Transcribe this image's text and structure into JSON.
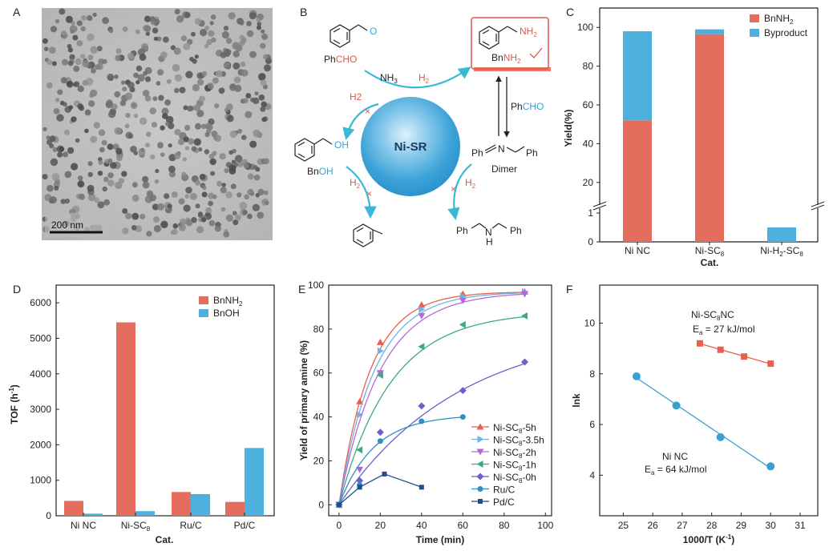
{
  "panels": {
    "a": {
      "label": "A",
      "scale_bar": "200 nm"
    },
    "b": {
      "label": "B",
      "center": "Ni-SR",
      "benzaldehyde": "PhCHO",
      "benzaldehyde_ph": "Ph",
      "benzaldehyde_cho": "CHO",
      "aldehyde_o": "O",
      "nh3": "NH3",
      "nh3_main": "NH",
      "nh3_sub": "3",
      "h2_main": "H",
      "h2_sub": "2",
      "h2_alt": "H2",
      "benzylamine": "BnNH2",
      "product_nh": "NH",
      "product_sub": "2",
      "product_bn": "Bn",
      "benzylalcohol": "BnOH",
      "alcohol_bn": "Bn",
      "alcohol_oh": "OH",
      "oh_label": "OH",
      "dimer": "Dimer",
      "dimer_ph1": "Ph",
      "dimer_n": "N",
      "dimer_ph2": "Ph",
      "reagent_ph": "Ph",
      "reagent_cho": "CHO",
      "secamine_ph1": "Ph",
      "secamine_n": "N",
      "secamine_h": "H",
      "secamine_ph2": "Ph"
    },
    "c": {
      "label": "C"
    },
    "d": {
      "label": "D"
    },
    "e": {
      "label": "E"
    },
    "f": {
      "label": "F"
    }
  },
  "chart_data": [
    {
      "id": "C",
      "type": "bar",
      "stacked": true,
      "categories": [
        "Ni NC",
        "Ni-SC8",
        "Ni-H2-SC8"
      ],
      "category_labels": [
        {
          "main": "Ni  NC",
          "sub": "",
          "tail": ""
        },
        {
          "main": "Ni-SC",
          "sub": "8",
          "tail": ""
        },
        {
          "main": "Ni-H",
          "sub": "2",
          "tail": "-SC",
          "sub2": "8"
        }
      ],
      "series": [
        {
          "name": "BnNH2",
          "legend_main": "BnNH",
          "legend_sub": "2",
          "color": "#e56d5e",
          "values": [
            52,
            96.5,
            0
          ]
        },
        {
          "name": "Byproduct",
          "legend_main": "Byproduct",
          "legend_sub": "",
          "color": "#4eb1dd",
          "values": [
            46,
            2.5,
            0.5
          ]
        }
      ],
      "xlabel": "Cat.",
      "ylabel": "Yield(%)",
      "ylim_lower": [
        0,
        1
      ],
      "ylim_upper": [
        10,
        110
      ],
      "yticks_lower": [
        0,
        1
      ],
      "yticks_upper": [
        20,
        40,
        60,
        80,
        100
      ]
    },
    {
      "id": "D",
      "type": "bar",
      "categories": [
        "Ni NC",
        "Ni-SC8",
        "Ru/C",
        "Pd/C"
      ],
      "category_labels": [
        {
          "main": "Ni NC",
          "sub": ""
        },
        {
          "main": "Ni-SC",
          "sub": "8"
        },
        {
          "main": "Ru/C",
          "sub": ""
        },
        {
          "main": "Pd/C",
          "sub": ""
        }
      ],
      "series": [
        {
          "name": "BnNH2",
          "legend_main": "BnNH",
          "legend_sub": "2",
          "color": "#e56d5e",
          "values": [
            420,
            5450,
            670,
            390
          ]
        },
        {
          "name": "BnOH",
          "legend_main": "BnOH",
          "legend_sub": "",
          "color": "#4eb1dd",
          "values": [
            60,
            130,
            610,
            1910
          ]
        }
      ],
      "xlabel": "Cat.",
      "ylabel_main": "TOF (h",
      "ylabel_sup": "-1",
      "ylabel_tail": ")",
      "ylim": [
        0,
        6500
      ],
      "yticks": [
        0,
        1000,
        2000,
        3000,
        4000,
        5000,
        6000
      ]
    },
    {
      "id": "E",
      "type": "line",
      "xlabel": "Time (min)",
      "ylabel": "Yield of primary amine (%)",
      "xlim": [
        -5,
        103
      ],
      "ylim": [
        -5,
        100
      ],
      "xticks": [
        0,
        20,
        40,
        60,
        80,
        100
      ],
      "yticks": [
        0,
        20,
        40,
        60,
        80,
        100
      ],
      "series": [
        {
          "name": "Ni-SC8-5h",
          "l_main": "Ni-SC",
          "l_sub": "8",
          "l_tail": "-5h",
          "color": "#e8604f",
          "marker": "tri-up",
          "x": [
            0,
            10,
            20,
            40,
            60,
            90
          ],
          "y": [
            0,
            47,
            74,
            91,
            96,
            97
          ],
          "fit_a": 97,
          "fit_k": 0.066
        },
        {
          "name": "Ni-SC8-3.5h",
          "l_main": "Ni-SC",
          "l_sub": "8",
          "l_tail": "-3.5h",
          "color": "#6fb3e0",
          "marker": "tri-right",
          "x": [
            0,
            10,
            20,
            40,
            60,
            90
          ],
          "y": [
            0,
            41,
            70,
            89,
            95,
            97
          ],
          "fit_a": 97,
          "fit_k": 0.058
        },
        {
          "name": "Ni-SC8-2h",
          "l_main": "Ni-SC",
          "l_sub": "8",
          "l_tail": "-2h",
          "color": "#b06ad8",
          "marker": "tri-down",
          "x": [
            0,
            10,
            20,
            40,
            60,
            90
          ],
          "y": [
            0,
            16,
            60,
            86,
            93,
            96
          ],
          "fit_a": 97,
          "fit_k": 0.05
        },
        {
          "name": "Ni-SC8-1h",
          "l_main": "Ni-SC",
          "l_sub": "8",
          "l_tail": "-1h",
          "color": "#3fa786",
          "marker": "tri-left",
          "x": [
            0,
            10,
            20,
            40,
            60,
            90
          ],
          "y": [
            0,
            25,
            59,
            72,
            82,
            86
          ],
          "fit_a": 88,
          "fit_k": 0.04
        },
        {
          "name": "Ni-SC8-0h",
          "l_main": "Ni-SC",
          "l_sub": "8",
          "l_tail": "-0h",
          "color": "#6b62c8",
          "marker": "diamond",
          "x": [
            0,
            10,
            20,
            40,
            60,
            90
          ],
          "y": [
            0,
            11,
            33,
            45,
            52,
            65
          ],
          "fit_a": 82,
          "fit_k": 0.017
        },
        {
          "name": "Ru/C",
          "l_main": "Ru/C",
          "l_sub": "",
          "l_tail": "",
          "color": "#2e8fc4",
          "marker": "circle",
          "x": [
            0,
            10,
            20,
            40,
            60
          ],
          "y": [
            0,
            9,
            29,
            38,
            40
          ],
          "fit_a": 41,
          "fit_k": 0.06
        },
        {
          "name": "Pd/C",
          "l_main": "Pd/C",
          "l_sub": "",
          "l_tail": "",
          "color": "#1f4e8c",
          "marker": "square",
          "x": [
            0,
            10,
            22,
            40
          ],
          "y": [
            0,
            8,
            14,
            8
          ],
          "fit_a": null,
          "fit_k": null
        }
      ]
    },
    {
      "id": "F",
      "type": "scatter",
      "xlabel_main": "1000/T (K",
      "xlabel_sup": "-1",
      "xlabel_tail": ")",
      "ylabel": "lnk",
      "xlim": [
        24.2,
        31.6
      ],
      "ylim": [
        2.4,
        11.5
      ],
      "xticks": [
        25,
        26,
        27,
        28,
        29,
        30,
        31
      ],
      "yticks": [
        4,
        6,
        8,
        10
      ],
      "series": [
        {
          "name": "Ni-SC8 NC",
          "n_main": "Ni-SC",
          "n_sub": "8",
          "n_tail": "NC",
          "ea_main": "E",
          "ea_sub": "a",
          "ea_tail": "= 27 kJ/mol",
          "color": "#e8604f",
          "marker": "square",
          "x": [
            27.6,
            28.3,
            29.1,
            30.0
          ],
          "y": [
            9.2,
            8.95,
            8.68,
            8.4
          ]
        },
        {
          "name": "Ni NC",
          "n_main": "Ni NC",
          "n_sub": "",
          "n_tail": "",
          "ea_main": "E",
          "ea_sub": "a",
          "ea_tail": "= 64 kJ/mol",
          "color": "#3aa0d4",
          "marker": "circle",
          "x": [
            25.45,
            26.8,
            28.3,
            30.0
          ],
          "y": [
            7.9,
            6.75,
            5.5,
            4.35
          ]
        }
      ]
    }
  ]
}
